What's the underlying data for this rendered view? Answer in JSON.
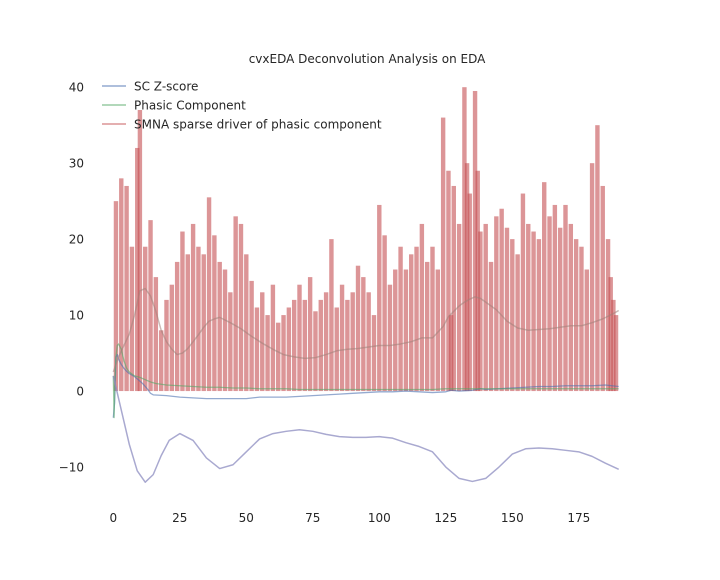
{
  "chart_data": {
    "type": "line",
    "title": "cvxEDA Deconvolution Analysis on EDA",
    "xlabel": "",
    "ylabel": "",
    "xlim": [
      -5,
      195
    ],
    "ylim": [
      -15,
      42
    ],
    "x_ticks": [
      0,
      25,
      50,
      75,
      100,
      125,
      150,
      175
    ],
    "y_ticks": [
      -10,
      0,
      10,
      20,
      30,
      40
    ],
    "x_tick_labels": [
      "0",
      "25",
      "50",
      "75",
      "100",
      "125",
      "150",
      "175"
    ],
    "y_tick_labels": [
      "−10",
      "0",
      "10",
      "20",
      "30",
      "40"
    ],
    "grid": false,
    "legend_position": "top-left",
    "series": [
      {
        "name": "SC Z-score",
        "color": "#4c72b0",
        "x": [
          0,
          0.5,
          1,
          1.5,
          2,
          3,
          4,
          5,
          6,
          7,
          8,
          9,
          10,
          11,
          12,
          13,
          14,
          15,
          20,
          25,
          30,
          35,
          40,
          45,
          50,
          55,
          60,
          65,
          70,
          75,
          80,
          85,
          90,
          95,
          100,
          105,
          110,
          115,
          120,
          125,
          127,
          130,
          135,
          138,
          140,
          145,
          150,
          155,
          160,
          165,
          170,
          175,
          180,
          185,
          190
        ],
        "values": [
          -3.5,
          -1.5,
          4.5,
          4.8,
          4.2,
          3.5,
          3.0,
          2.6,
          2.3,
          2.1,
          1.9,
          1.6,
          1.3,
          1.0,
          0.6,
          0.2,
          -0.3,
          -0.5,
          -0.6,
          -0.8,
          -0.9,
          -1.0,
          -1.0,
          -1.0,
          -1.0,
          -0.8,
          -0.8,
          -0.8,
          -0.7,
          -0.6,
          -0.5,
          -0.4,
          -0.3,
          -0.2,
          -0.1,
          -0.1,
          0.0,
          -0.1,
          -0.2,
          -0.1,
          0.1,
          0.0,
          0.1,
          0.3,
          0.2,
          0.3,
          0.4,
          0.5,
          0.6,
          0.6,
          0.7,
          0.7,
          0.7,
          0.8,
          0.6
        ]
      },
      {
        "name": "Phasic Component",
        "color": "#55a868",
        "x": [
          0,
          0.3,
          0.6,
          1,
          1.5,
          2,
          3,
          4,
          5,
          6,
          8,
          10,
          12,
          14,
          16,
          20,
          25,
          30,
          35,
          40,
          45,
          50,
          55,
          60,
          65,
          70,
          75,
          80,
          85,
          90,
          95,
          100,
          105,
          110,
          115,
          120,
          125,
          130,
          135,
          140,
          145,
          150,
          155,
          160,
          165,
          170,
          175,
          180,
          185,
          190
        ],
        "values": [
          2.0,
          -3.5,
          1.5,
          4.5,
          6.0,
          6.2,
          5.5,
          4.0,
          3.0,
          2.5,
          2.0,
          1.8,
          1.5,
          1.2,
          1.0,
          0.8,
          0.7,
          0.6,
          0.5,
          0.5,
          0.4,
          0.4,
          0.3,
          0.3,
          0.3,
          0.2,
          0.2,
          0.2,
          0.2,
          0.2,
          0.2,
          0.2,
          0.2,
          0.2,
          0.2,
          0.2,
          0.3,
          0.3,
          0.3,
          0.3,
          0.3,
          0.3,
          0.3,
          0.3,
          0.3,
          0.3,
          0.3,
          0.3,
          0.3,
          0.3
        ]
      },
      {
        "name": "SMNA sparse driver of phasic component",
        "color": "#c44e52",
        "x": [
          1,
          3,
          5,
          7,
          9,
          10,
          12,
          14,
          16,
          18,
          20,
          22,
          24,
          26,
          28,
          30,
          32,
          34,
          36,
          38,
          40,
          42,
          44,
          46,
          48,
          50,
          52,
          54,
          56,
          58,
          60,
          62,
          64,
          66,
          68,
          70,
          72,
          74,
          76,
          78,
          80,
          82,
          84,
          86,
          88,
          90,
          92,
          94,
          96,
          98,
          100,
          102,
          104,
          106,
          108,
          110,
          112,
          114,
          116,
          118,
          120,
          122,
          124,
          126,
          127,
          128,
          130,
          132,
          133,
          134,
          136,
          137,
          138,
          140,
          142,
          144,
          146,
          148,
          150,
          152,
          154,
          156,
          158,
          160,
          162,
          164,
          166,
          168,
          170,
          172,
          174,
          176,
          178,
          180,
          182,
          184,
          186,
          187,
          188,
          189
        ],
        "values": [
          25,
          28,
          27,
          19,
          32,
          37,
          19,
          22.5,
          15,
          8,
          12,
          14,
          17,
          21,
          18,
          22,
          19,
          18,
          25.5,
          20.5,
          17,
          16,
          13,
          23,
          22,
          18,
          14.5,
          11,
          13,
          10,
          14,
          9,
          10,
          11,
          12,
          14,
          12,
          15,
          10.5,
          12,
          13,
          20,
          11,
          14,
          12,
          13,
          16.5,
          15,
          13,
          10,
          24.5,
          20.5,
          14,
          16,
          19,
          16,
          18,
          19,
          22,
          17,
          19,
          16,
          36,
          29,
          10,
          27,
          22,
          40,
          30,
          26,
          39.5,
          29,
          21,
          22,
          17,
          23,
          24,
          21.5,
          20,
          18,
          26,
          22,
          21,
          20,
          27.5,
          23,
          24.5,
          21.5,
          24.5,
          22,
          20,
          19,
          16,
          30,
          35,
          27,
          20,
          15,
          12,
          10
        ]
      },
      {
        "name": "",
        "color": "#8c8cc0",
        "x": [
          0,
          3,
          6,
          9,
          12,
          15,
          18,
          21,
          25,
          30,
          35,
          40,
          45,
          50,
          55,
          60,
          65,
          70,
          75,
          80,
          85,
          90,
          95,
          100,
          105,
          110,
          115,
          120,
          125,
          130,
          135,
          140,
          145,
          150,
          155,
          160,
          165,
          170,
          175,
          180,
          185,
          190
        ],
        "values": [
          2.0,
          -2.5,
          -7.0,
          -10.5,
          -12.0,
          -11.0,
          -8.5,
          -6.5,
          -5.6,
          -6.5,
          -8.8,
          -10.2,
          -9.7,
          -8.0,
          -6.3,
          -5.6,
          -5.3,
          -5.1,
          -5.3,
          -5.7,
          -6.0,
          -6.1,
          -6.1,
          -6.0,
          -6.2,
          -6.8,
          -7.3,
          -8.0,
          -10.0,
          -11.5,
          -11.9,
          -11.5,
          -10.0,
          -8.3,
          -7.6,
          -7.5,
          -7.6,
          -7.8,
          -8.0,
          -8.6,
          -9.5,
          -10.3
        ]
      },
      {
        "name": "",
        "color": "#a0827a",
        "x": [
          0,
          2,
          4,
          6,
          8,
          10,
          12,
          14,
          16,
          18,
          20,
          22,
          24,
          26,
          28,
          30,
          32,
          34,
          36,
          38,
          40,
          44,
          48,
          52,
          56,
          60,
          64,
          68,
          72,
          76,
          80,
          84,
          88,
          92,
          96,
          100,
          104,
          108,
          112,
          116,
          120,
          124,
          126,
          128,
          130,
          132,
          134,
          136,
          138,
          140,
          144,
          148,
          152,
          156,
          160,
          164,
          168,
          172,
          176,
          180,
          184,
          188,
          190
        ],
        "values": [
          2.5,
          4.5,
          6.0,
          7.5,
          10.0,
          13.2,
          13.5,
          12.5,
          10.5,
          8.0,
          6.5,
          5.5,
          4.8,
          5.0,
          5.6,
          6.5,
          7.4,
          8.4,
          9.2,
          9.5,
          9.7,
          9.0,
          8.2,
          7.2,
          6.3,
          5.5,
          4.8,
          4.5,
          4.3,
          4.4,
          4.8,
          5.3,
          5.5,
          5.6,
          5.8,
          6.0,
          6.0,
          6.2,
          6.5,
          7.0,
          7.0,
          8.5,
          9.8,
          10.5,
          11.2,
          11.7,
          12.1,
          12.4,
          12.2,
          11.7,
          10.7,
          9.2,
          8.3,
          8.0,
          8.1,
          8.2,
          8.4,
          8.6,
          8.6,
          9.0,
          9.5,
          10.2,
          10.6
        ]
      }
    ]
  }
}
